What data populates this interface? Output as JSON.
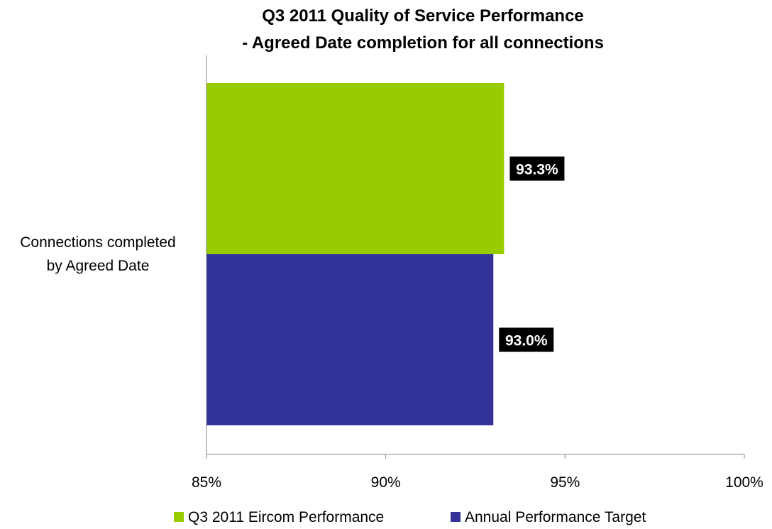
{
  "chart_data": {
    "type": "bar",
    "orientation": "horizontal",
    "title": "Q3 2011 Quality of Service Performance",
    "subtitle": "- Agreed Date completion for all connections",
    "categories": [
      "Connections completed by Agreed Date"
    ],
    "category_lines": [
      "Connections completed",
      "by Agreed Date"
    ],
    "series": [
      {
        "name": "Q3 2011 Eircom Performance",
        "values": [
          93.3
        ],
        "label": "93.3%",
        "color": "#99cc00"
      },
      {
        "name": "Annual Performance Target",
        "values": [
          93.0
        ],
        "label": "93.0%",
        "color": "#333399"
      }
    ],
    "xlim": [
      85,
      100
    ],
    "xticks": [
      {
        "value": 85,
        "label": "85%"
      },
      {
        "value": 90,
        "label": "90%"
      },
      {
        "value": 95,
        "label": "95%"
      },
      {
        "value": 100,
        "label": "100%"
      }
    ],
    "grid": false,
    "legend": "bottom"
  }
}
